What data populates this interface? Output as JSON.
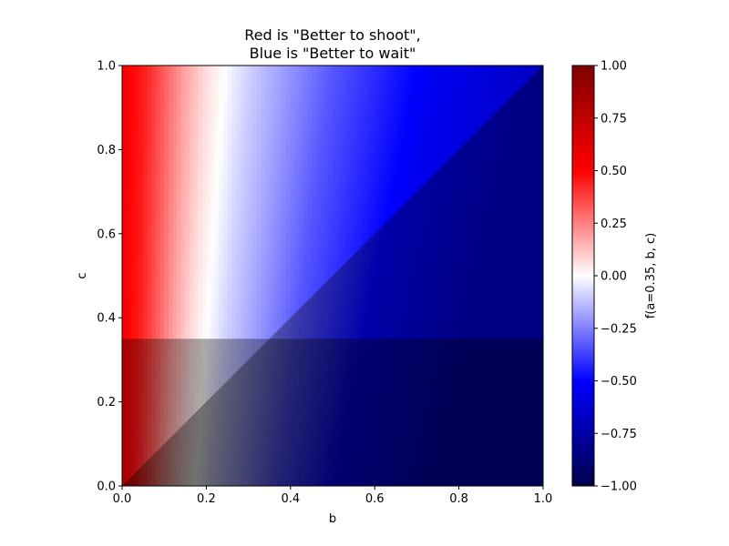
{
  "chart_data": {
    "type": "heatmap",
    "title_lines": [
      "Red is \"Better to shoot\",",
      "Blue is \"Better to wait\""
    ],
    "xlabel": "b",
    "ylabel": "c",
    "xlim": [
      0.0,
      1.0
    ],
    "ylim": [
      0.0,
      1.0
    ],
    "x_ticks": [
      "0.0",
      "0.2",
      "0.4",
      "0.6",
      "0.8",
      "1.0"
    ],
    "y_ticks": [
      "0.0",
      "0.2",
      "0.4",
      "0.6",
      "0.8",
      "1.0"
    ],
    "a": 0.35,
    "colormap": "seismic",
    "colorbar": {
      "label": "f(a=0.35, b, c)",
      "range": [
        -1.0,
        1.0
      ],
      "ticks": [
        "1.00",
        "0.75",
        "0.50",
        "0.25",
        "0.00",
        "−0.25",
        "−0.50",
        "−0.75",
        "−1.00"
      ]
    },
    "field_samples": {
      "b": [
        0.0,
        0.05,
        0.1,
        0.15,
        0.2,
        0.3,
        0.5,
        0.75,
        1.0
      ],
      "value_at_c_1": [
        0.52,
        0.45,
        0.32,
        0.18,
        0.07,
        -0.09,
        -0.33,
        -0.54,
        -0.67
      ]
    },
    "shaded_regions": [
      {
        "description": "c < a",
        "c_max": 0.35
      },
      {
        "description": "c < b"
      }
    ]
  }
}
